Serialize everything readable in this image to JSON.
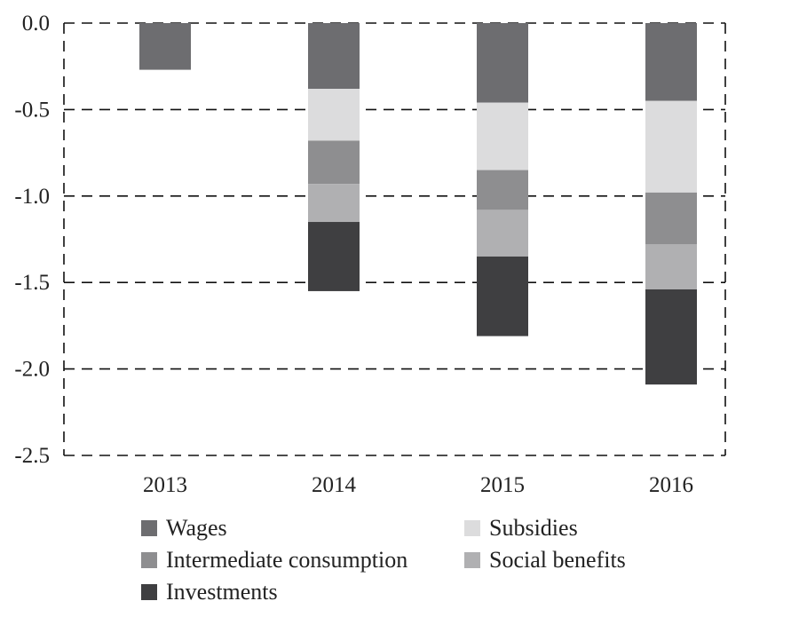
{
  "chart_data": {
    "type": "bar",
    "stacked": true,
    "title": "",
    "xlabel": "",
    "ylabel": "",
    "categories": [
      "2013",
      "2014",
      "2015",
      "2016"
    ],
    "ylim": [
      -2.5,
      0.0
    ],
    "yticks": [
      0.0,
      -0.5,
      -1.0,
      -1.5,
      -2.0,
      -2.5
    ],
    "ytick_labels": [
      "0.0",
      "-0.5",
      "-1.0",
      "-1.5",
      "-2.0",
      "-2.5"
    ],
    "grid": true,
    "grid_style": "dashed",
    "legend_position": "bottom",
    "series": [
      {
        "name": "Wages",
        "color": "#6d6d70",
        "values": [
          -0.27,
          -0.38,
          -0.46,
          -0.45
        ]
      },
      {
        "name": "Subsidies",
        "color": "#dcdcdd",
        "values": [
          0.0,
          -0.3,
          -0.39,
          -0.53
        ]
      },
      {
        "name": "Intermediate consumption",
        "color": "#8e8e90",
        "values": [
          0.0,
          -0.25,
          -0.23,
          -0.3
        ]
      },
      {
        "name": "Social benefits",
        "color": "#b0b0b2",
        "values": [
          0.0,
          -0.22,
          -0.27,
          -0.26
        ]
      },
      {
        "name": "Investments",
        "color": "#3f3f41",
        "values": [
          0.0,
          -0.4,
          -0.46,
          -0.55
        ]
      }
    ]
  },
  "legend": {
    "items": [
      "Wages",
      "Subsidies",
      "Intermediate consumption",
      "Social benefits",
      "Investments"
    ]
  }
}
